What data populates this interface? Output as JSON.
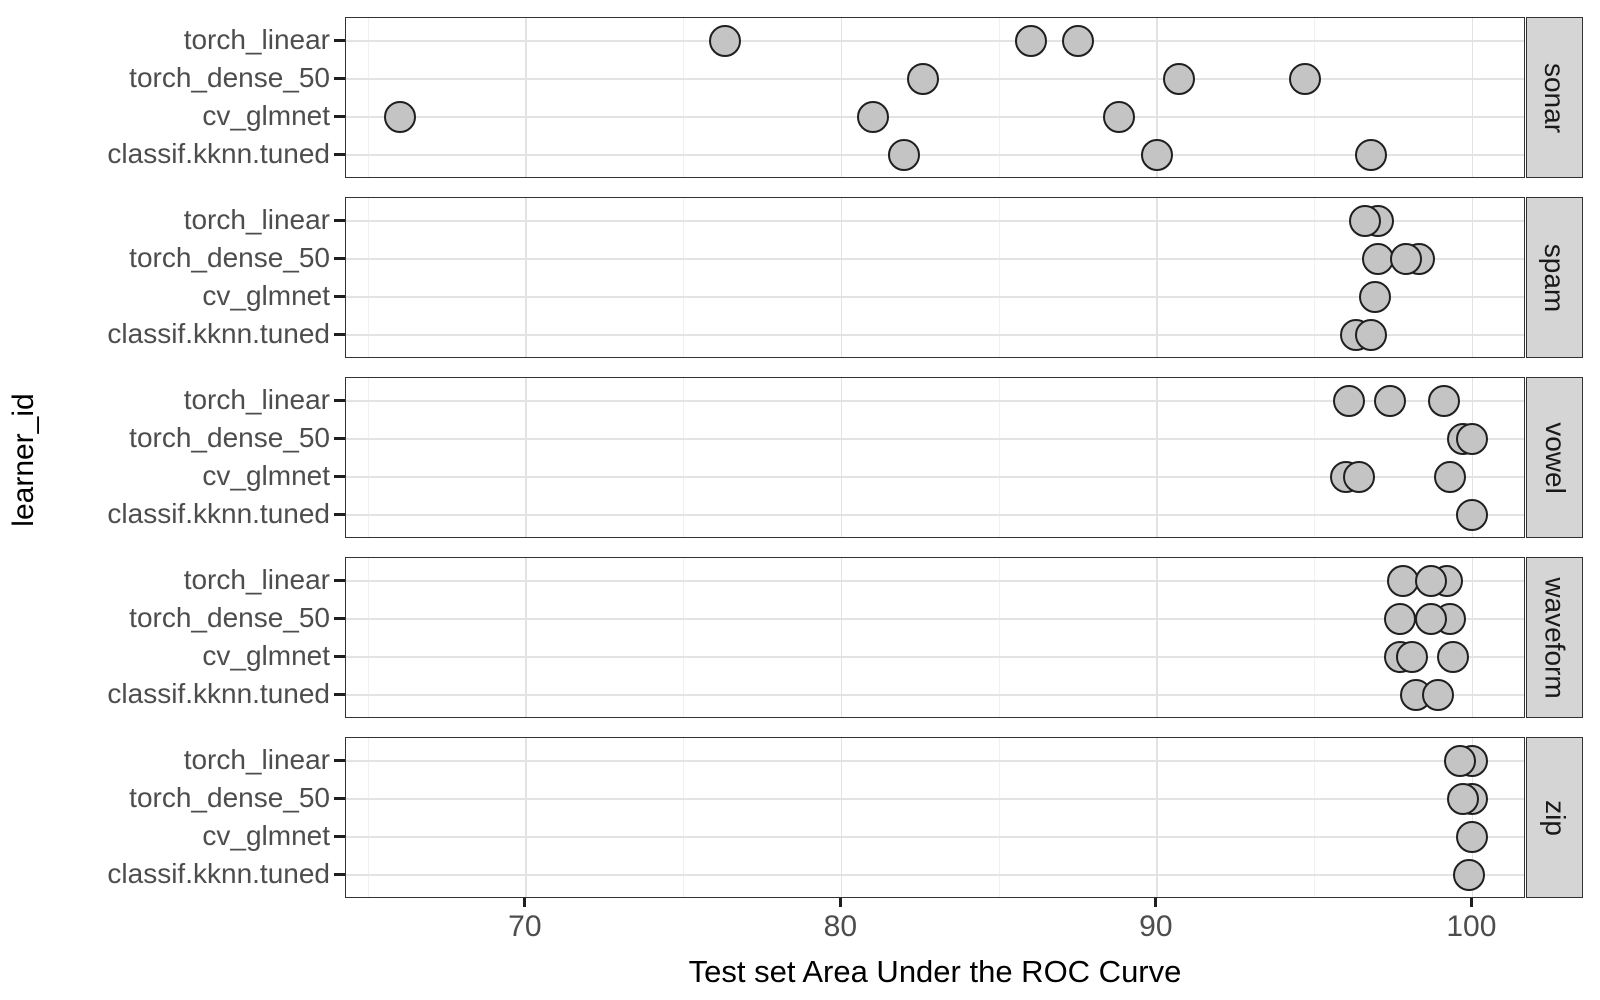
{
  "chart_data": {
    "type": "scatter",
    "title": "",
    "xlabel": "Test set Area Under the ROC Curve",
    "ylabel": "learner_id",
    "xlim": [
      64.3,
      101.7
    ],
    "x_ticks": [
      70,
      80,
      90,
      100
    ],
    "x_tick_labels": [
      "70",
      "80",
      "90",
      "100"
    ],
    "x_minor_ticks": [
      65,
      75,
      85,
      95
    ],
    "grid": true,
    "legend_position": "none",
    "y_categories": [
      "torch_linear",
      "torch_dense_50",
      "cv_glmnet",
      "classif.kknn.tuned"
    ],
    "facet_labels": [
      "sonar",
      "spam",
      "vowel",
      "waveform",
      "zip"
    ],
    "facets": [
      {
        "label": "sonar",
        "points": {
          "torch_linear": [
            76.3,
            86.0,
            87.5
          ],
          "torch_dense_50": [
            82.6,
            90.7,
            94.7
          ],
          "cv_glmnet": [
            66.0,
            81.0,
            88.8
          ],
          "classif.kknn.tuned": [
            82.0,
            90.0,
            96.8
          ]
        }
      },
      {
        "label": "spam",
        "points": {
          "torch_linear": [
            97.0,
            96.6
          ],
          "torch_dense_50": [
            97.0,
            98.3,
            97.9
          ],
          "cv_glmnet": [
            96.9
          ],
          "classif.kknn.tuned": [
            96.3,
            96.8
          ]
        }
      },
      {
        "label": "vowel",
        "points": {
          "torch_linear": [
            96.1,
            97.4,
            99.1
          ],
          "torch_dense_50": [
            99.7,
            100.0
          ],
          "cv_glmnet": [
            96.0,
            96.4,
            99.3
          ],
          "classif.kknn.tuned": [
            100.0
          ]
        }
      },
      {
        "label": "waveform",
        "points": {
          "torch_linear": [
            97.8,
            99.2,
            98.7
          ],
          "torch_dense_50": [
            97.7,
            99.3,
            98.7
          ],
          "cv_glmnet": [
            97.7,
            98.1,
            99.4
          ],
          "classif.kknn.tuned": [
            98.2,
            98.9
          ]
        }
      },
      {
        "label": "zip",
        "points": {
          "torch_linear": [
            100.0,
            99.6
          ],
          "torch_dense_50": [
            100.0,
            99.7
          ],
          "cv_glmnet": [
            100.0
          ],
          "classif.kknn.tuned": [
            99.9
          ]
        }
      }
    ],
    "style": {
      "point_fill": "#c4c4c4",
      "point_stroke": "#1f1f1f",
      "panel_bg": "#ffffff",
      "panel_border": "#333333",
      "grid_major": "#e3e3e3",
      "grid_minor": "#f0f0f0",
      "strip_bg": "#d5d5d5",
      "strip_text": "#1a1a1a",
      "axis_text": "#4d4d4d",
      "axis_title": "#000000",
      "tick_mark": "#1f1f1f"
    }
  }
}
